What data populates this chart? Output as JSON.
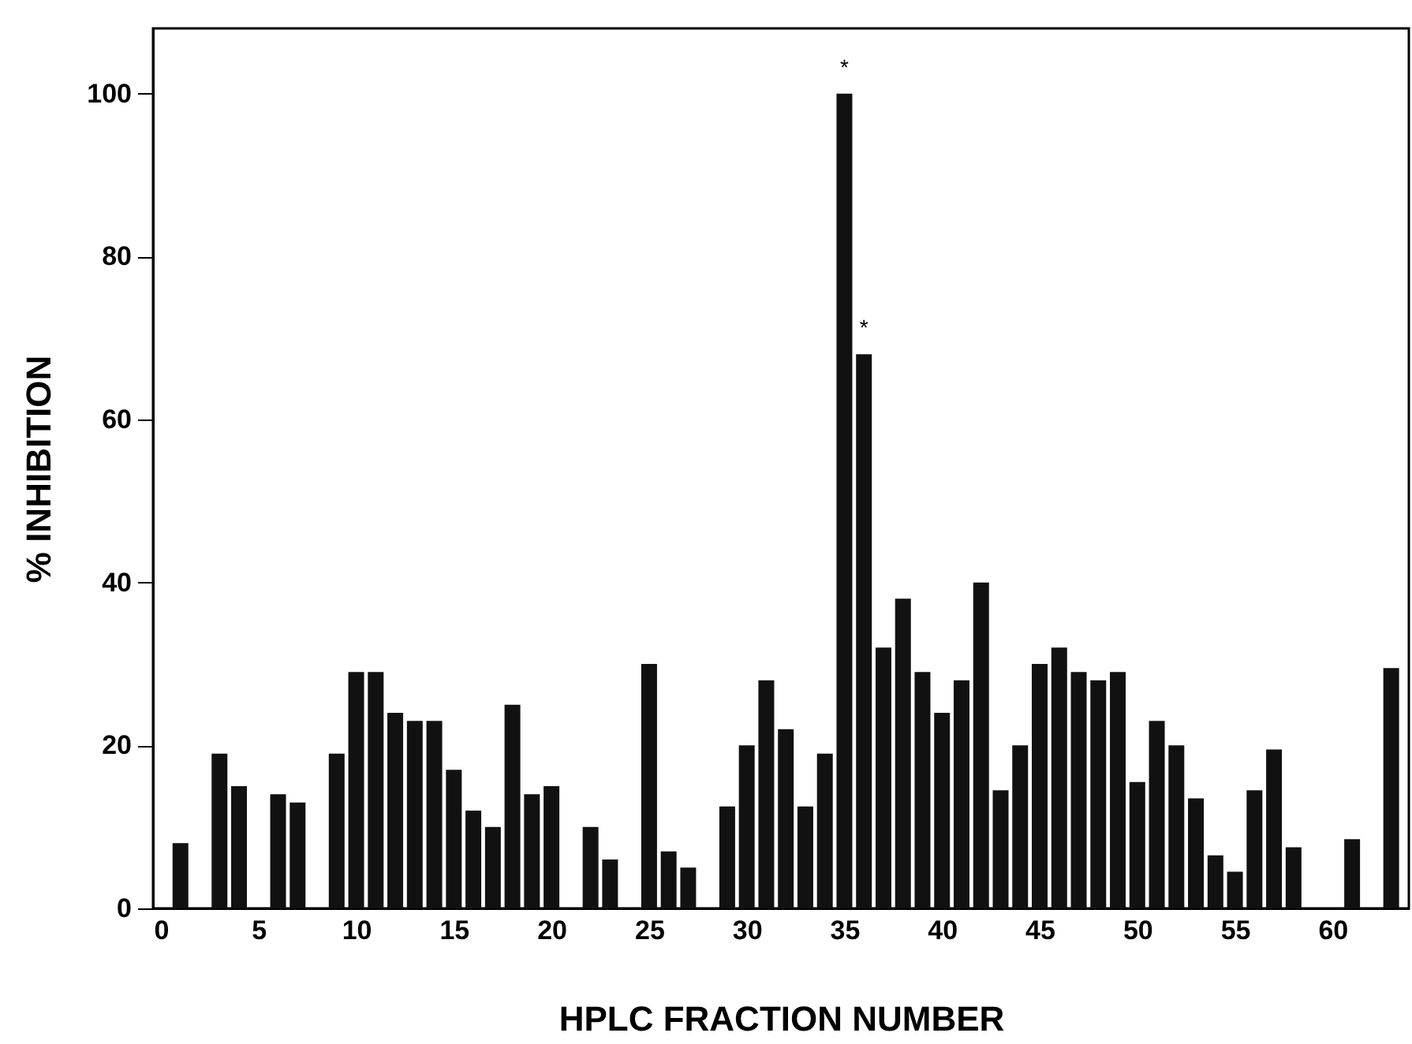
{
  "chart_data": {
    "type": "bar",
    "xlabel": "HPLC FRACTION NUMBER",
    "ylabel": "% INHIBITION",
    "x": [
      1,
      3,
      4,
      6,
      7,
      9,
      10,
      11,
      12,
      13,
      14,
      15,
      16,
      17,
      18,
      19,
      20,
      22,
      23,
      25,
      26,
      27,
      29,
      30,
      31,
      32,
      33,
      34,
      35,
      36,
      37,
      38,
      39,
      40,
      41,
      42,
      43,
      44,
      45,
      46,
      47,
      48,
      49,
      50,
      51,
      52,
      53,
      54,
      55,
      56,
      57,
      58,
      61,
      63
    ],
    "values": [
      8,
      19,
      15,
      14,
      13,
      19,
      29,
      29,
      24,
      23,
      23,
      17,
      12,
      10,
      25,
      14,
      15,
      10,
      6,
      30,
      7,
      5,
      12.5,
      20,
      28,
      22,
      12.5,
      19,
      100,
      68,
      32,
      38,
      29,
      24,
      28,
      40,
      14.5,
      20,
      30,
      32,
      29,
      28,
      29,
      15.5,
      23,
      20,
      13.5,
      6.5,
      4.5,
      14.5,
      19.5,
      7.5,
      8.5,
      29.5
    ],
    "color": "#111111",
    "xlim": [
      0,
      63.5
    ],
    "xticks": [
      0,
      5,
      10,
      15,
      20,
      25,
      30,
      35,
      40,
      45,
      50,
      55,
      60
    ],
    "ylim": [
      0,
      108
    ],
    "yticks": [
      0,
      20,
      40,
      60,
      80,
      100
    ],
    "annotations": [
      {
        "text": "*",
        "x": 35,
        "y": 100
      },
      {
        "text": "*",
        "x": 36,
        "y": 68
      }
    ],
    "grid": false
  }
}
